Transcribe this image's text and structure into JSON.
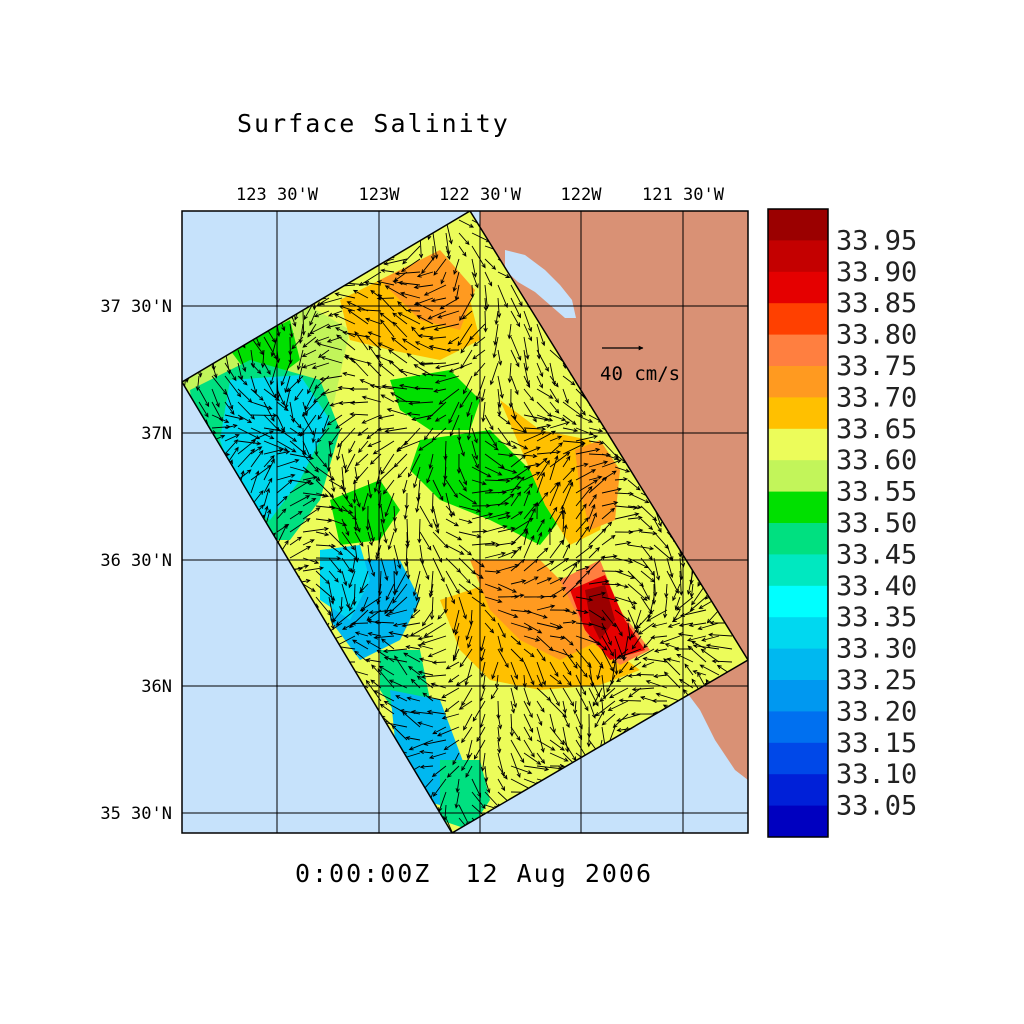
{
  "title": "Surface Salinity",
  "timestamp": "0:00:00Z  12 Aug 2006",
  "x_axis_ticks": [
    "123 30'W",
    "123W",
    "122 30'W",
    "122W",
    "121 30'W"
  ],
  "y_axis_ticks": [
    "37 30'N",
    "37N",
    "36 30'N",
    "36N",
    "35 30'N"
  ],
  "vector_scale_label": "40 cm/s",
  "colorbar": {
    "labels": [
      "33.95",
      "33.90",
      "33.85",
      "33.80",
      "33.75",
      "33.70",
      "33.65",
      "33.60",
      "33.55",
      "33.50",
      "33.45",
      "33.40",
      "33.35",
      "33.30",
      "33.25",
      "33.20",
      "33.15",
      "33.10",
      "33.05"
    ],
    "colors": [
      "#9b0000",
      "#c40000",
      "#e50000",
      "#ff4000",
      "#ff7f40",
      "#ff9a20",
      "#ffc000",
      "#ecfc5a",
      "#c2f55a",
      "#00e000",
      "#00e080",
      "#00e8c0",
      "#00ffff",
      "#00d8f0",
      "#00b8f0",
      "#0098f0",
      "#0070f0",
      "#0048e8",
      "#0020d8",
      "#0000c0"
    ]
  },
  "colors": {
    "ocean": "#c6e2fb",
    "land": "#d99175",
    "bay": "#c6e2fb"
  }
}
